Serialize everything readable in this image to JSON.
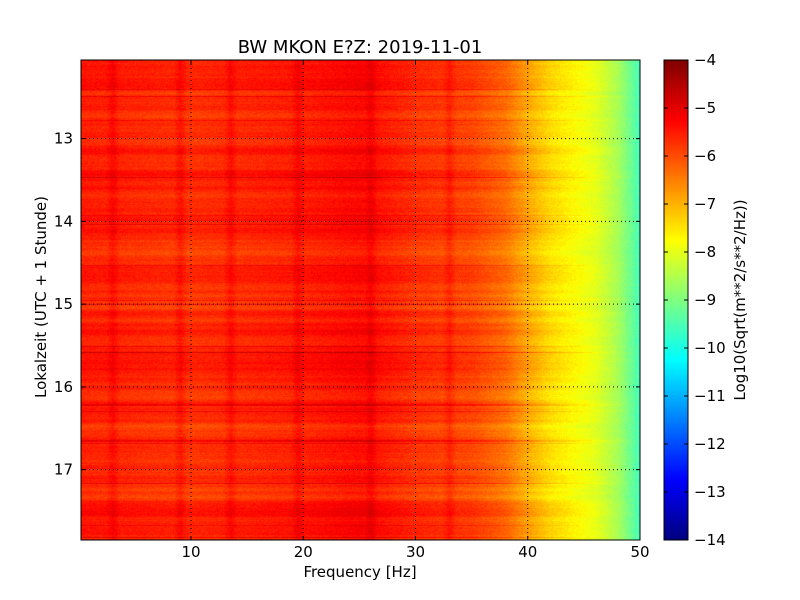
{
  "chart_data": {
    "type": "heatmap",
    "title": "BW MKON E?Z: 2019-11-01",
    "xlabel": "Frequency [Hz]",
    "ylabel": "Lokalzeit (UTC + 1 Stunde)",
    "xlim": [
      0.2,
      50
    ],
    "ylim": [
      17.85,
      12.05
    ],
    "x_ticks": [
      10,
      20,
      30,
      40,
      50
    ],
    "x_tick_labels": [
      "10",
      "20",
      "30",
      "40",
      "50"
    ],
    "y_ticks": [
      13,
      14,
      15,
      16,
      17
    ],
    "y_tick_labels": [
      "13",
      "14",
      "15",
      "16",
      "17"
    ],
    "grid": true,
    "colormap": "jet",
    "colorbar": {
      "label": "Log10(Sqrt(m**2/s**2/Hz))",
      "range": [
        -14,
        -4
      ],
      "ticks": [
        -4,
        -5,
        -6,
        -7,
        -8,
        -9,
        -10,
        -11,
        -12,
        -13,
        -14
      ],
      "tick_labels": [
        "−4",
        "−5",
        "−6",
        "−7",
        "−8",
        "−9",
        "−10",
        "−11",
        "−12",
        "−13",
        "−14"
      ]
    },
    "frequency_profile": {
      "frequency_hz": [
        0,
        5,
        10,
        15,
        20,
        25,
        30,
        35,
        38,
        40,
        42,
        44,
        46,
        48,
        50
      ],
      "level": [
        -5.5,
        -5.6,
        -5.7,
        -5.6,
        -5.5,
        -5.3,
        -5.7,
        -5.9,
        -6.3,
        -6.9,
        -7.4,
        -7.7,
        -8.0,
        -8.6,
        -9.6
      ]
    },
    "frequency_lines_hz": [
      3,
      9,
      13.5,
      19.5,
      26,
      33
    ]
  }
}
